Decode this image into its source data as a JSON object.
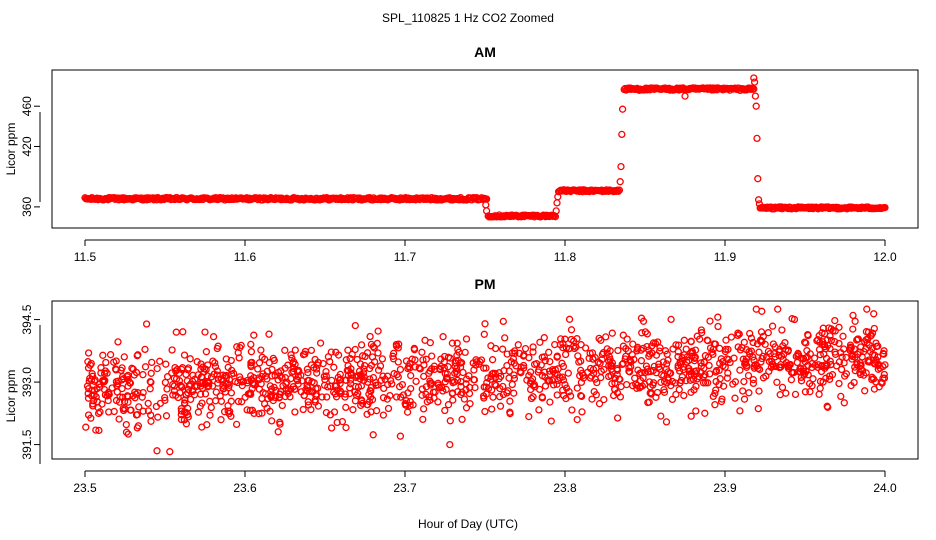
{
  "figure": {
    "title": "SPL_110825  1 Hz CO2 Zoomed",
    "xlabel": "Hour of Day (UTC)"
  },
  "colors": {
    "marker": "#ff0000",
    "axis": "#000000"
  },
  "chart_data": [
    {
      "type": "scatter",
      "title": "AM",
      "xlabel": "",
      "ylabel": "Licor ppm",
      "xlim": [
        11.5,
        12.0
      ],
      "ylim": [
        343,
        492
      ],
      "xticks": [
        11.5,
        11.6,
        11.7,
        11.8,
        11.9,
        12.0
      ],
      "xtick_labels": [
        "11.5",
        "11.6",
        "11.7",
        "11.8",
        "11.9",
        "12.0"
      ],
      "yticks": [
        360,
        420,
        460
      ],
      "ytick_labels": [
        "360",
        "420",
        "460"
      ],
      "marker": "open-circle",
      "segments": [
        {
          "x_start": 11.5,
          "x_end": 11.751,
          "y": 368.0,
          "noise": 1.2
        },
        {
          "x_start": 11.752,
          "x_end": 11.794,
          "y": 351.0,
          "noise": 1.0
        },
        {
          "x_start": 11.796,
          "x_end": 11.834,
          "y": 376.0,
          "noise": 1.0
        },
        {
          "x_start": 11.837,
          "x_end": 11.918,
          "y": 477.0,
          "noise": 1.2
        },
        {
          "x_start": 11.922,
          "x_end": 12.0,
          "y": 359.0,
          "noise": 1.0
        }
      ],
      "points": [
        [
          11.7505,
          362.0
        ],
        [
          11.751,
          356.0
        ],
        [
          11.7945,
          356.0
        ],
        [
          11.795,
          364.0
        ],
        [
          11.7955,
          370.0
        ],
        [
          11.8345,
          385.0
        ],
        [
          11.835,
          400.0
        ],
        [
          11.8355,
          432.0
        ],
        [
          11.836,
          457.0
        ],
        [
          11.875,
          470.0
        ],
        [
          11.918,
          488.0
        ],
        [
          11.9185,
          484.0
        ],
        [
          11.919,
          470.0
        ],
        [
          11.9195,
          460.0
        ],
        [
          11.92,
          428.0
        ],
        [
          11.9205,
          388.0
        ],
        [
          11.921,
          367.0
        ],
        [
          11.9215,
          363.0
        ]
      ]
    },
    {
      "type": "scatter",
      "title": "PM",
      "xlabel": "",
      "ylabel": "Licor ppm",
      "xlim": [
        23.5,
        24.0
      ],
      "ylim": [
        391.25,
        394.85
      ],
      "xticks": [
        23.5,
        23.6,
        23.7,
        23.8,
        23.9,
        24.0
      ],
      "xtick_labels": [
        "23.5",
        "23.6",
        "23.7",
        "23.8",
        "23.9",
        "24.0"
      ],
      "yticks": [
        391.5,
        393.0,
        394.5
      ],
      "ytick_labels": [
        "391.5",
        "393.0",
        "394.5"
      ],
      "marker": "open-circle",
      "trend": {
        "start": 392.8,
        "end": 393.6,
        "noise_sd": 0.45,
        "n_points": 1500
      },
      "points": [
        [
          23.545,
          391.35
        ],
        [
          23.553,
          391.33
        ],
        [
          23.728,
          391.5
        ],
        [
          23.923,
          394.7
        ],
        [
          23.98,
          394.6
        ],
        [
          23.75,
          394.4
        ],
        [
          23.575,
          394.2
        ],
        [
          23.615,
          394.15
        ]
      ]
    }
  ]
}
